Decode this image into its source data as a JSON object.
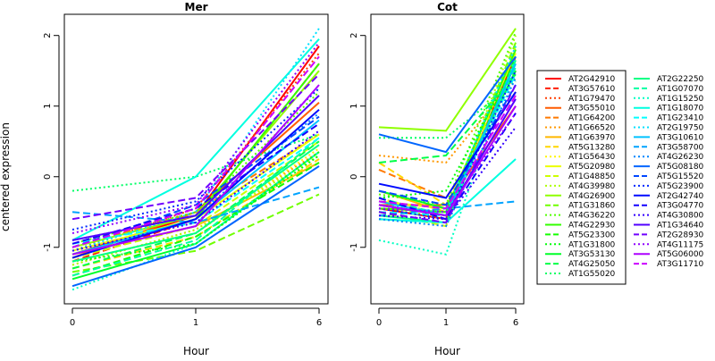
{
  "ylabel": "centered expression",
  "xlabel": "Hour",
  "chart_data": [
    {
      "type": "line",
      "title": "Mer",
      "xlabel": "Hour",
      "ylabel": "centered expression",
      "categories": [
        "0",
        "1",
        "6"
      ],
      "ylim": [
        -1.8,
        2.3
      ],
      "yticks": [
        -1,
        0,
        1,
        2
      ],
      "series": [
        {
          "name": "AT2G42910",
          "values": [
            -1.1,
            -0.55,
            1.85
          ]
        },
        {
          "name": "AT3G57610",
          "values": [
            -1.2,
            -0.6,
            1.6
          ]
        },
        {
          "name": "AT1G79470",
          "values": [
            -1.05,
            -0.45,
            1.75
          ]
        },
        {
          "name": "AT3G55010",
          "values": [
            -1.15,
            -0.5,
            1.05
          ]
        },
        {
          "name": "AT1G64200",
          "values": [
            -1.0,
            -0.5,
            0.6
          ]
        },
        {
          "name": "AT1G66520",
          "values": [
            -1.25,
            -0.75,
            0.35
          ]
        },
        {
          "name": "AT1G63970",
          "values": [
            -1.1,
            -0.7,
            0.2
          ]
        },
        {
          "name": "AT5G13280",
          "values": [
            -1.3,
            -0.85,
            0.25
          ]
        },
        {
          "name": "AT1G56430",
          "values": [
            -1.2,
            -0.8,
            0.4
          ]
        },
        {
          "name": "AT5G20980",
          "values": [
            -1.05,
            -0.6,
            0.6
          ]
        },
        {
          "name": "AT1G48850",
          "values": [
            -1.15,
            -0.7,
            0.5
          ]
        },
        {
          "name": "AT4G39980",
          "values": [
            -1.25,
            -0.75,
            0.3
          ]
        },
        {
          "name": "AT4G26900",
          "values": [
            -1.0,
            -0.55,
            1.5
          ]
        },
        {
          "name": "AT1G31860",
          "values": [
            -1.35,
            -1.05,
            -0.25
          ]
        },
        {
          "name": "AT4G36220",
          "values": [
            -0.95,
            -0.5,
            1.2
          ]
        },
        {
          "name": "AT4G22930",
          "values": [
            -1.1,
            -0.6,
            1.6
          ]
        },
        {
          "name": "AT5G23300",
          "values": [
            -1.4,
            -0.85,
            0.2
          ]
        },
        {
          "name": "AT1G31800",
          "values": [
            -1.2,
            -0.95,
            0.3
          ]
        },
        {
          "name": "AT3G53130",
          "values": [
            -1.45,
            -0.95,
            0.35
          ]
        },
        {
          "name": "AT4G25050",
          "values": [
            -1.3,
            -0.8,
            0.5
          ]
        },
        {
          "name": "AT1G55020",
          "values": [
            -0.2,
            0.0,
            0.6
          ]
        },
        {
          "name": "AT2G22250",
          "values": [
            -1.2,
            -0.8,
            0.45
          ]
        },
        {
          "name": "AT1G07070",
          "values": [
            -1.4,
            -0.9,
            0.55
          ]
        },
        {
          "name": "AT1G15250",
          "values": [
            -1.6,
            -0.95,
            0.35
          ]
        },
        {
          "name": "AT1G18070",
          "values": [
            -0.9,
            0.0,
            1.95
          ]
        },
        {
          "name": "AT1G23410",
          "values": [
            -0.95,
            -0.65,
            0.55
          ]
        },
        {
          "name": "AT2G19750",
          "values": [
            -1.05,
            -0.5,
            2.1
          ]
        },
        {
          "name": "AT3G10610",
          "values": [
            -1.1,
            -0.6,
            0.8
          ]
        },
        {
          "name": "AT3G58700",
          "values": [
            -0.5,
            -0.65,
            -0.15
          ]
        },
        {
          "name": "AT4G26230",
          "values": [
            -0.9,
            -0.55,
            0.9
          ]
        },
        {
          "name": "AT5G08180",
          "values": [
            -1.55,
            -1.0,
            0.15
          ]
        },
        {
          "name": "AT5G15520",
          "values": [
            -1.0,
            -0.4,
            0.85
          ]
        },
        {
          "name": "AT5G23900",
          "values": [
            -0.75,
            -0.35,
            1.25
          ]
        },
        {
          "name": "AT2G42740",
          "values": [
            -1.15,
            -0.6,
            0.95
          ]
        },
        {
          "name": "AT3G04770",
          "values": [
            -0.95,
            -0.45,
            0.75
          ]
        },
        {
          "name": "AT4G30800",
          "values": [
            -1.05,
            -0.65,
            0.65
          ]
        },
        {
          "name": "AT1G34640",
          "values": [
            -0.9,
            -0.55,
            1.15
          ]
        },
        {
          "name": "AT2G28930",
          "values": [
            -0.6,
            -0.3,
            1.45
          ]
        },
        {
          "name": "AT4G11175",
          "values": [
            -0.8,
            -0.4,
            1.9
          ]
        },
        {
          "name": "AT5G06000",
          "values": [
            -1.1,
            -0.7,
            1.3
          ]
        },
        {
          "name": "AT3G11710",
          "values": [
            -1.0,
            -0.45,
            1.7
          ]
        }
      ]
    },
    {
      "type": "line",
      "title": "Cot",
      "xlabel": "Hour",
      "ylabel": "",
      "categories": [
        "0",
        "1",
        "6"
      ],
      "ylim": [
        -1.8,
        2.3
      ],
      "yticks": [
        -1,
        0,
        1,
        2
      ],
      "series": [
        {
          "name": "AT2G42910",
          "values": [
            -0.45,
            -0.6,
            1.7
          ]
        },
        {
          "name": "AT3G57610",
          "values": [
            -0.4,
            -0.55,
            1.5
          ]
        },
        {
          "name": "AT1G79470",
          "values": [
            -0.35,
            -0.45,
            1.6
          ]
        },
        {
          "name": "AT3G55010",
          "values": [
            -0.4,
            -0.4,
            1.0
          ]
        },
        {
          "name": "AT1G64200",
          "values": [
            0.1,
            -0.3,
            1.2
          ]
        },
        {
          "name": "AT1G66520",
          "values": [
            0.3,
            0.2,
            1.4
          ]
        },
        {
          "name": "AT1G63970",
          "values": [
            -0.2,
            -0.5,
            1.8
          ]
        },
        {
          "name": "AT5G13280",
          "values": [
            0.2,
            -0.4,
            1.55
          ]
        },
        {
          "name": "AT1G56430",
          "values": [
            -0.3,
            -0.55,
            1.65
          ]
        },
        {
          "name": "AT5G20980",
          "values": [
            -0.35,
            -0.45,
            1.75
          ]
        },
        {
          "name": "AT1G48850",
          "values": [
            -0.5,
            -0.7,
            1.85
          ]
        },
        {
          "name": "AT4G39980",
          "values": [
            -0.4,
            -0.6,
            2.0
          ]
        },
        {
          "name": "AT4G26900",
          "values": [
            0.7,
            0.65,
            2.1
          ]
        },
        {
          "name": "AT1G31860",
          "values": [
            -0.5,
            -0.55,
            1.9
          ]
        },
        {
          "name": "AT4G36220",
          "values": [
            -0.25,
            -0.4,
            2.05
          ]
        },
        {
          "name": "AT4G22930",
          "values": [
            -0.45,
            -0.5,
            1.8
          ]
        },
        {
          "name": "AT5G23300",
          "values": [
            -0.6,
            -0.65,
            1.7
          ]
        },
        {
          "name": "AT1G31800",
          "values": [
            -0.3,
            -0.2,
            1.6
          ]
        },
        {
          "name": "AT3G53130",
          "values": [
            -0.2,
            -0.45,
            1.5
          ]
        },
        {
          "name": "AT4G25050",
          "values": [
            0.2,
            0.3,
            1.45
          ]
        },
        {
          "name": "AT1G55020",
          "values": [
            0.55,
            0.55,
            1.35
          ]
        },
        {
          "name": "AT2G22250",
          "values": [
            -0.55,
            -0.65,
            1.65
          ]
        },
        {
          "name": "AT1G07070",
          "values": [
            -0.3,
            -0.55,
            1.55
          ]
        },
        {
          "name": "AT1G15250",
          "values": [
            -0.9,
            -1.1,
            1.7
          ]
        },
        {
          "name": "AT1G18070",
          "values": [
            -0.6,
            -0.65,
            0.25
          ]
        },
        {
          "name": "AT1G23410",
          "values": [
            -0.5,
            -0.55,
            1.45
          ]
        },
        {
          "name": "AT2G19750",
          "values": [
            -0.4,
            -0.5,
            1.85
          ]
        },
        {
          "name": "AT3G10610",
          "values": [
            -0.35,
            -0.55,
            1.6
          ]
        },
        {
          "name": "AT3G58700",
          "values": [
            -0.55,
            -0.45,
            -0.35
          ]
        },
        {
          "name": "AT4G26230",
          "values": [
            -0.6,
            -0.7,
            1.4
          ]
        },
        {
          "name": "AT5G08180",
          "values": [
            0.6,
            0.35,
            1.7
          ]
        },
        {
          "name": "AT5G15520",
          "values": [
            -0.2,
            -0.4,
            1.3
          ]
        },
        {
          "name": "AT5G23900",
          "values": [
            -0.45,
            -0.6,
            1.5
          ]
        },
        {
          "name": "AT2G42740",
          "values": [
            -0.1,
            -0.3,
            1.2
          ]
        },
        {
          "name": "AT3G04770",
          "values": [
            -0.3,
            -0.6,
            0.9
          ]
        },
        {
          "name": "AT4G30800",
          "values": [
            -0.55,
            -0.6,
            0.7
          ]
        },
        {
          "name": "AT1G34640",
          "values": [
            -0.4,
            -0.55,
            1.1
          ]
        },
        {
          "name": "AT2G28930",
          "values": [
            -0.5,
            -0.65,
            1.3
          ]
        },
        {
          "name": "AT4G11175",
          "values": [
            -0.45,
            -0.5,
            0.9
          ]
        },
        {
          "name": "AT5G06000",
          "values": [
            -0.4,
            -0.55,
            1.0
          ]
        },
        {
          "name": "AT3G11710",
          "values": [
            -0.35,
            -0.45,
            1.15
          ]
        }
      ]
    }
  ],
  "legend": {
    "placement": "right",
    "entries": [
      {
        "name": "AT2G42910",
        "color": "#ff0000",
        "dash": "solid"
      },
      {
        "name": "AT3G57610",
        "color": "#ff1f00",
        "dash": "dashed"
      },
      {
        "name": "AT1G79470",
        "color": "#ff3d00",
        "dash": "dotted"
      },
      {
        "name": "AT3G55010",
        "color": "#ff5c00",
        "dash": "solid"
      },
      {
        "name": "AT1G64200",
        "color": "#ff7a00",
        "dash": "dashed"
      },
      {
        "name": "AT1G66520",
        "color": "#ff9900",
        "dash": "dotted"
      },
      {
        "name": "AT1G63970",
        "color": "#ffb800",
        "dash": "solid"
      },
      {
        "name": "AT5G13280",
        "color": "#ffd600",
        "dash": "dashed"
      },
      {
        "name": "AT1G56430",
        "color": "#fff500",
        "dash": "dotted"
      },
      {
        "name": "AT5G20980",
        "color": "#ebff00",
        "dash": "solid"
      },
      {
        "name": "AT1G48850",
        "color": "#ccff00",
        "dash": "dashed"
      },
      {
        "name": "AT4G39980",
        "color": "#adff00",
        "dash": "dotted"
      },
      {
        "name": "AT4G26900",
        "color": "#8fff00",
        "dash": "solid"
      },
      {
        "name": "AT1G31860",
        "color": "#70ff00",
        "dash": "dashed"
      },
      {
        "name": "AT4G36220",
        "color": "#52ff00",
        "dash": "dotted"
      },
      {
        "name": "AT4G22930",
        "color": "#33ff00",
        "dash": "solid"
      },
      {
        "name": "AT5G23300",
        "color": "#14ff00",
        "dash": "dashed"
      },
      {
        "name": "AT1G31800",
        "color": "#00ff0a",
        "dash": "dotted"
      },
      {
        "name": "AT3G53130",
        "color": "#00ff29",
        "dash": "solid"
      },
      {
        "name": "AT4G25050",
        "color": "#00ff47",
        "dash": "dashed"
      },
      {
        "name": "AT1G55020",
        "color": "#00ff66",
        "dash": "dotted"
      },
      {
        "name": "AT2G22250",
        "color": "#00ff85",
        "dash": "solid"
      },
      {
        "name": "AT1G07070",
        "color": "#00ffa3",
        "dash": "dashed"
      },
      {
        "name": "AT1G15250",
        "color": "#00ffc2",
        "dash": "dotted"
      },
      {
        "name": "AT1G18070",
        "color": "#00ffe0",
        "dash": "solid"
      },
      {
        "name": "AT1G23410",
        "color": "#00ffff",
        "dash": "dashed"
      },
      {
        "name": "AT2G19750",
        "color": "#00e0ff",
        "dash": "dotted"
      },
      {
        "name": "AT3G10610",
        "color": "#00c2ff",
        "dash": "solid"
      },
      {
        "name": "AT3G58700",
        "color": "#00a3ff",
        "dash": "dashed"
      },
      {
        "name": "AT4G26230",
        "color": "#0085ff",
        "dash": "dotted"
      },
      {
        "name": "AT5G08180",
        "color": "#0066ff",
        "dash": "solid"
      },
      {
        "name": "AT5G15520",
        "color": "#0047ff",
        "dash": "dashed"
      },
      {
        "name": "AT5G23900",
        "color": "#0029ff",
        "dash": "dotted"
      },
      {
        "name": "AT2G42740",
        "color": "#000aff",
        "dash": "solid"
      },
      {
        "name": "AT3G04770",
        "color": "#1400ff",
        "dash": "dashed"
      },
      {
        "name": "AT4G30800",
        "color": "#3300ff",
        "dash": "dotted"
      },
      {
        "name": "AT1G34640",
        "color": "#5200ff",
        "dash": "solid"
      },
      {
        "name": "AT2G28930",
        "color": "#7000ff",
        "dash": "dashed"
      },
      {
        "name": "AT4G11175",
        "color": "#8f00ff",
        "dash": "dotted"
      },
      {
        "name": "AT5G06000",
        "color": "#ad00ff",
        "dash": "solid"
      },
      {
        "name": "AT3G11710",
        "color": "#cc00ff",
        "dash": "dashed"
      }
    ]
  }
}
